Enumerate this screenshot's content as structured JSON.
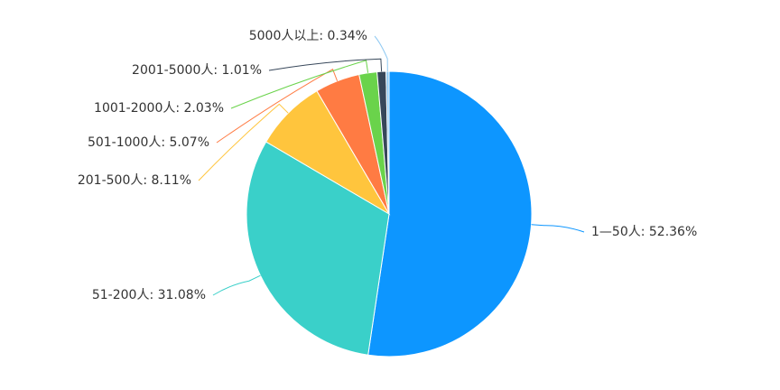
{
  "chart_data": {
    "type": "pie",
    "values": [
      52.36,
      31.08,
      8.11,
      5.07,
      2.03,
      1.01,
      0.34
    ],
    "value_labels": [
      "1—50人: 52.36%",
      "51-200人: 31.08%",
      "201-500人: 8.11%",
      "501-1000人: 5.07%",
      "1001-2000人: 2.03%",
      "2001-5000人: 1.01%",
      "5000人以上: 0.34%"
    ],
    "colors": [
      "#0d96ff",
      "#3ad0c9",
      "#ffc53d",
      "#ff7b43",
      "#6ad34b",
      "#37475a",
      "#8fc9f2"
    ]
  }
}
